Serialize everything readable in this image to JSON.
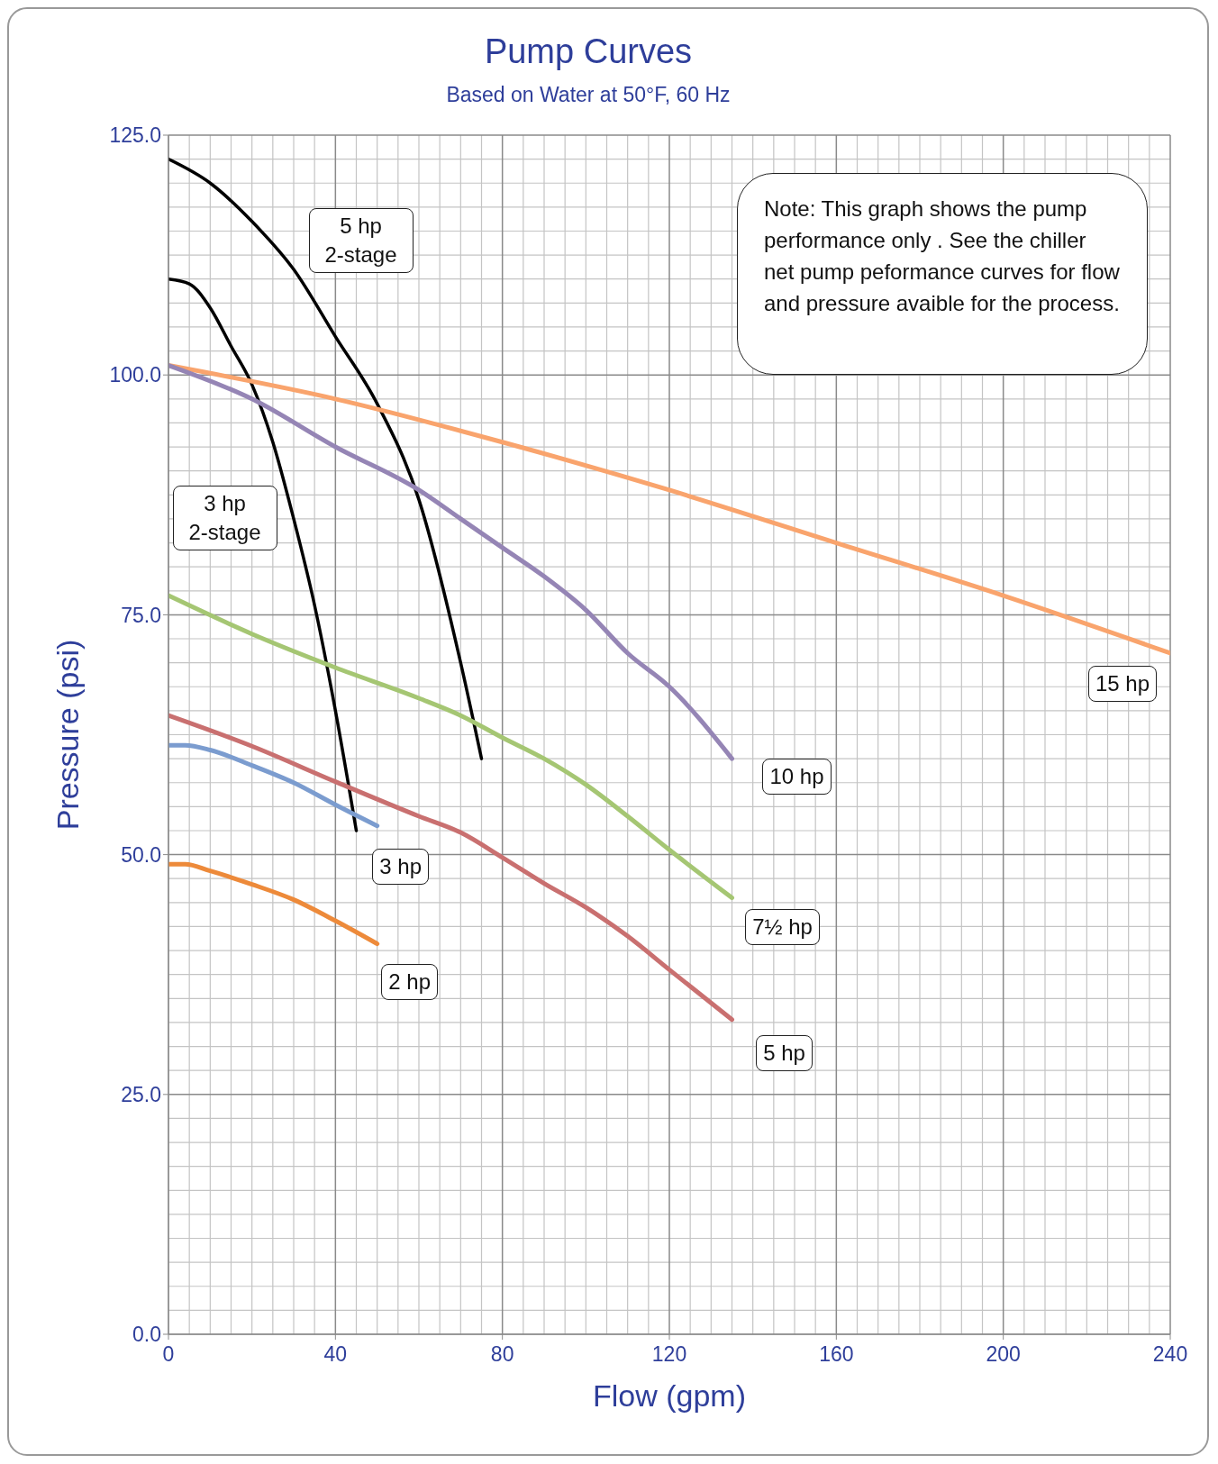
{
  "chart_data": {
    "type": "line",
    "title": "Pump Curves",
    "subtitle": "Based on Water at 50°F, 60 Hz",
    "xlabel": "Flow (gpm)",
    "ylabel": "Pressure (psi)",
    "xlim": [
      0,
      240
    ],
    "xticks": [
      0,
      40,
      80,
      120,
      160,
      200,
      240
    ],
    "ylim": [
      0,
      125
    ],
    "yticks": [
      {
        "value": 0,
        "label": "0.0"
      },
      {
        "value": 25,
        "label": "25.0"
      },
      {
        "value": 50,
        "label": "50.0"
      },
      {
        "value": 75,
        "label": "75.0"
      },
      {
        "value": 100,
        "label": "100.0"
      },
      {
        "value": 125,
        "label": "125.0"
      }
    ],
    "grid": true,
    "legend": false,
    "marker": "none",
    "line_style": "solid",
    "annotations": [
      "Note: This graph shows the pump performance only . See the chiller net pump peformance curves for flow and pressure avaible for the process."
    ],
    "series": [
      {
        "name": "5 hp 2-stage",
        "color": "#000000",
        "x": [
          0,
          10,
          20,
          30,
          40,
          50,
          60,
          70,
          75
        ],
        "values": [
          122.5,
          120,
          116,
          111,
          104,
          97,
          87,
          70,
          60
        ]
      },
      {
        "name": "3 hp 2-stage",
        "color": "#000000",
        "x": [
          0,
          5,
          10,
          15,
          20,
          25,
          30,
          35,
          40,
          45
        ],
        "values": [
          110,
          109.5,
          107,
          103,
          99,
          93,
          85,
          76,
          65,
          52.5
        ]
      },
      {
        "name": "15 hp",
        "color": "#f9a46d",
        "x": [
          0,
          40,
          80,
          120,
          160,
          200,
          240
        ],
        "values": [
          101,
          97.5,
          93,
          88,
          82.5,
          77,
          71
        ]
      },
      {
        "name": "10 hp",
        "color": "#9585b5",
        "x": [
          0,
          20,
          40,
          60,
          70,
          80,
          90,
          100,
          110,
          120,
          135
        ],
        "values": [
          101,
          97.5,
          92.5,
          88,
          85,
          82,
          79,
          75.5,
          71,
          67.5,
          60
        ]
      },
      {
        "name": "7½ hp",
        "color": "#a5c673",
        "x": [
          0,
          20,
          40,
          60,
          70,
          80,
          90,
          100,
          110,
          120,
          135
        ],
        "values": [
          77,
          73,
          69.5,
          66.3,
          64.5,
          62.2,
          60,
          57.3,
          54,
          50.5,
          45.5
        ]
      },
      {
        "name": "5 hp",
        "color": "#c97070",
        "x": [
          0,
          20,
          40,
          60,
          70,
          80,
          90,
          100,
          110,
          120,
          135
        ],
        "values": [
          64.5,
          61.3,
          57.6,
          54,
          52.3,
          49.7,
          47,
          44.5,
          41.5,
          38,
          32.8
        ]
      },
      {
        "name": "3 hp",
        "color": "#7b9ccf",
        "x": [
          0,
          4,
          10,
          20,
          30,
          40,
          50
        ],
        "values": [
          61.4,
          61.4,
          60.9,
          59.3,
          57.5,
          55.2,
          53
        ]
      },
      {
        "name": "2 hp",
        "color": "#ed8a3a",
        "x": [
          0,
          4,
          10,
          20,
          30,
          40,
          50
        ],
        "values": [
          49,
          49,
          48.3,
          46.9,
          45.3,
          43.1,
          40.7
        ]
      }
    ]
  }
}
